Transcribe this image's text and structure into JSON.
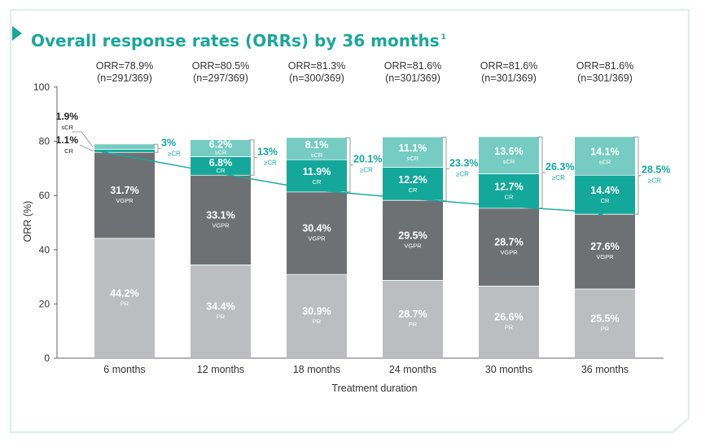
{
  "colors": {
    "accent": "#1aa79a",
    "PR": "#bcbdbe",
    "VGPR": "#6e7173",
    "CR": "#14a89b",
    "sCR": "#76cbc3",
    "frame": "#dff0ee"
  },
  "title": "Overall response rates (ORRs) by 36 months",
  "title_sup": "1",
  "chart_data": {
    "type": "bar",
    "stacked": true,
    "title": "Overall response rates (ORRs) by 36 months",
    "xlabel": "Treatment duration",
    "ylabel": "ORR (%)",
    "ylim": [
      0,
      100
    ],
    "yticks": [
      "0",
      "20",
      "40",
      "60",
      "80",
      "100"
    ],
    "categories": [
      "6 months",
      "12 months",
      "18 months",
      "24 months",
      "30 months",
      "36 months"
    ],
    "orr_labels": [
      {
        "orr": "ORR=78.9%",
        "n": "(n=291/369)"
      },
      {
        "orr": "ORR=80.5%",
        "n": "(n=297/369)"
      },
      {
        "orr": "ORR=81.3%",
        "n": "(n=300/369)"
      },
      {
        "orr": "ORR=81.6%",
        "n": "(n=301/369)"
      },
      {
        "orr": "ORR=81.6%",
        "n": "(n=301/369)"
      },
      {
        "orr": "ORR=81.6%",
        "n": "(n=301/369)"
      }
    ],
    "series": [
      {
        "name": "PR",
        "values": [
          44.2,
          34.4,
          30.9,
          28.7,
          26.6,
          25.5
        ],
        "labels": [
          "44.2%",
          "34.4%",
          "30.9%",
          "28.7%",
          "26.6%",
          "25.5%"
        ]
      },
      {
        "name": "VGPR",
        "values": [
          31.7,
          33.1,
          30.4,
          29.5,
          28.7,
          27.6
        ],
        "labels": [
          "31.7%",
          "33.1%",
          "30.4%",
          "29.5%",
          "28.7%",
          "27.6%"
        ]
      },
      {
        "name": "CR",
        "values": [
          1.1,
          6.8,
          11.9,
          12.2,
          12.7,
          14.4
        ],
        "labels": [
          "1.1%",
          "6.8%",
          "11.9%",
          "12.2%",
          "12.7%",
          "14.4%"
        ]
      },
      {
        "name": "sCR",
        "values": [
          1.9,
          6.2,
          8.1,
          11.1,
          13.6,
          14.1
        ],
        "labels": [
          "1.9%",
          "6.2%",
          "8.1%",
          "11.1%",
          "13.6%",
          "14.1%"
        ]
      }
    ],
    "totals_ge_cr": {
      "name": "≥CR",
      "values": [
        3,
        13,
        20.1,
        23.3,
        26.3,
        28.5
      ],
      "labels": [
        "3%",
        "13%",
        "20.1%",
        "23.3%",
        "26.3%",
        "28.5%"
      ]
    },
    "trend": "arrow across CR/VGPR boundary showing rising ≥CR rate"
  }
}
